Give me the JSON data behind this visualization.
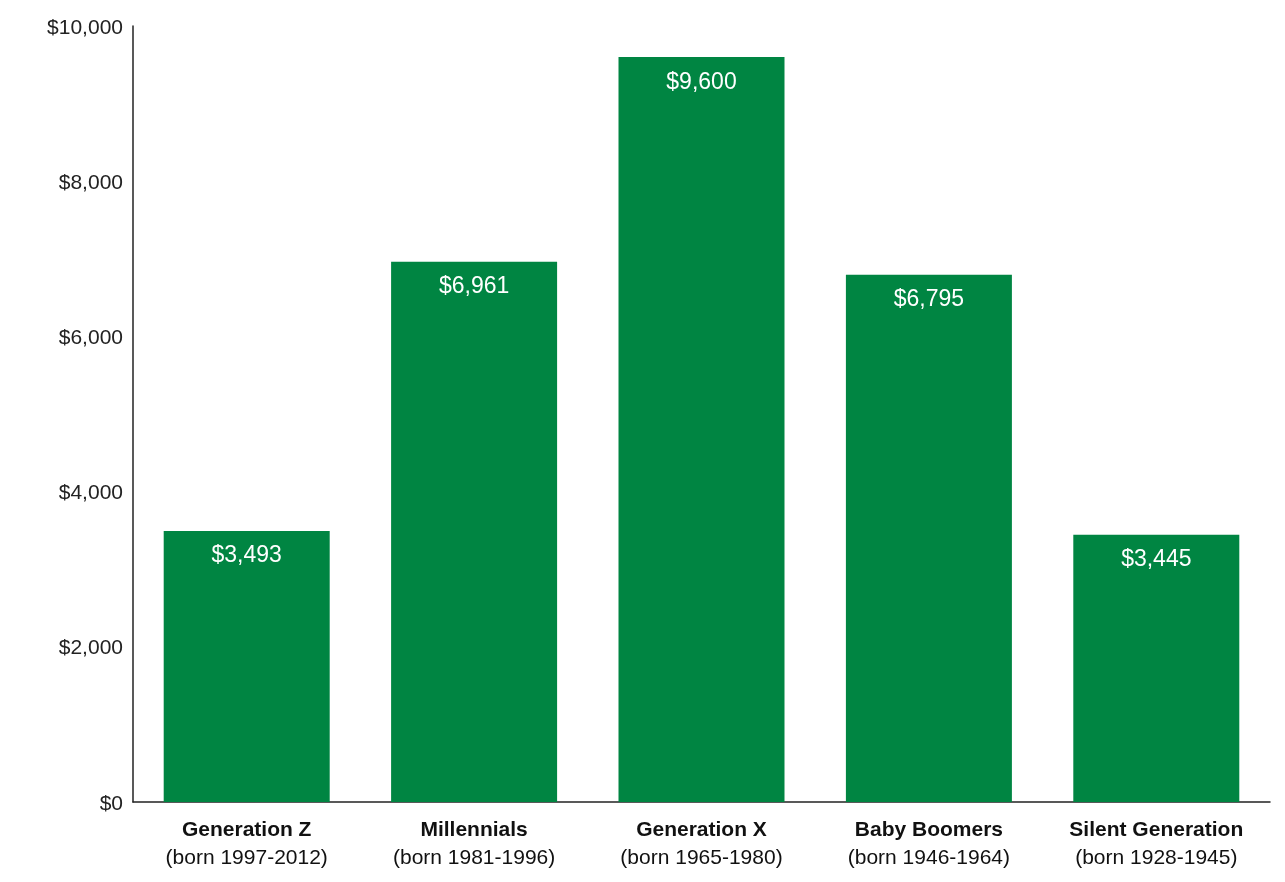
{
  "chart_data": {
    "type": "bar",
    "categories": [
      "Generation Z\n(born 1997-2012)",
      "Millennials\n(born 1981-1996)",
      "Generation X\n(born 1965-1980)",
      "Baby Boomers\n(born 1946-1964)",
      "Silent Generation\n(born 1928-1945)"
    ],
    "values": [
      3493,
      6961,
      9600,
      6795,
      3445
    ],
    "value_labels": [
      "$3,493",
      "$6,961",
      "$9,600",
      "$6,795",
      "$3,445"
    ],
    "color": "#008542",
    "ylim": [
      0,
      10000
    ],
    "yticks": [
      {
        "value": 0,
        "label": "$0"
      },
      {
        "value": 2000,
        "label": "$2,000"
      },
      {
        "value": 4000,
        "label": "$4,000"
      },
      {
        "value": 6000,
        "label": "$6,000"
      },
      {
        "value": 8000,
        "label": "$8,000"
      },
      {
        "value": 10000,
        "label": "$10,000"
      }
    ],
    "grid": false
  }
}
